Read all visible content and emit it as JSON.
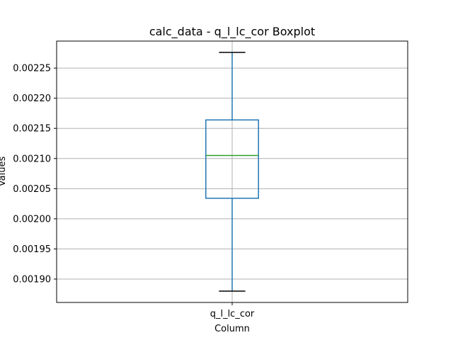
{
  "chart_data": {
    "type": "box",
    "title": "calc_data - q_l_lc_cor Boxplot",
    "xlabel": "Column",
    "ylabel": "Values",
    "categories": [
      "q_l_lc_cor"
    ],
    "boxes": [
      {
        "name": "q_l_lc_cor",
        "whisker_low": 0.00188,
        "q1": 0.002034,
        "median": 0.002105,
        "q3": 0.002164,
        "whisker_high": 0.002276
      }
    ],
    "y_ticks": [
      0.0019,
      0.00195,
      0.002,
      0.00205,
      0.0021,
      0.00215,
      0.0022,
      0.00225
    ],
    "y_tick_labels": [
      "0.00190",
      "0.00195",
      "0.00200",
      "0.00205",
      "0.00210",
      "0.00215",
      "0.00220",
      "0.00225"
    ],
    "ylim": [
      0.0018612,
      0.0022948
    ],
    "grid": true,
    "colors": {
      "box": "#1f77b4",
      "median": "#2ca02c",
      "whisker_cap": "#000000",
      "grid": "#b0b0b0"
    }
  }
}
